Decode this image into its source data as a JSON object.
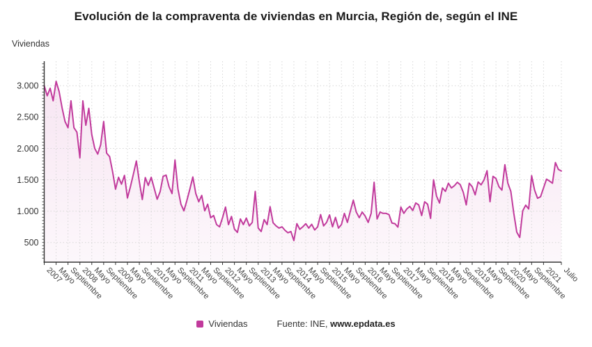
{
  "title": "Evolución de la compraventa de viviendas en Murcia, Región de, según el INE",
  "y_axis_title": "Viviendas",
  "legend": {
    "label": "Viviendas",
    "color": "#c13a9c"
  },
  "source": {
    "prefix": "Fuente: INE, ",
    "site": "www.epdata.es"
  },
  "chart_data": {
    "type": "area",
    "title": "Evolución de la compraventa de viviendas en Murcia, Región de, según el INE",
    "xlabel": "",
    "ylabel": "Viviendas",
    "frequency": "monthly",
    "x_start": "Enero 2007",
    "x_end": "Julio 2021",
    "grid": true,
    "legend_position": "bottom",
    "line_color": "#c13a9c",
    "fill_color_top": "rgba(193,58,156,0.13)",
    "fill_color_bottom": "rgba(193,58,156,0.04)",
    "y_ticks": [
      500,
      1000,
      1500,
      2000,
      2500,
      3000
    ],
    "y_tick_labels": [
      "500",
      "1.000",
      "1.500",
      "2.000",
      "2.500",
      "3.000"
    ],
    "ylim": [
      186,
      3392
    ],
    "x_tick_labels": [
      "2007",
      "Mayo",
      "Septiembre",
      "2008",
      "Mayo",
      "Septiembre",
      "2009",
      "Mayo",
      "Septiembre",
      "2010",
      "Mayo",
      "Septiembre",
      "2011",
      "Mayo",
      "Septiembre",
      "2012",
      "Mayo",
      "Septiembre",
      "2013",
      "Mayo",
      "Septiembre",
      "2014",
      "Mayo",
      "Septiembre",
      "2015",
      "Mayo",
      "Septiembre",
      "2016",
      "Mayo",
      "Septiembre",
      "2017",
      "Mayo",
      "Septiembre",
      "2018",
      "Mayo",
      "Septiembre",
      "2019",
      "Mayo",
      "Septiembre",
      "2020",
      "Mayo",
      "Septiembre",
      "2021",
      "Julio"
    ],
    "x_tick_month_index": [
      0,
      4,
      8,
      12,
      16,
      20,
      24,
      28,
      32,
      36,
      40,
      44,
      48,
      52,
      56,
      60,
      64,
      68,
      72,
      76,
      80,
      84,
      88,
      92,
      96,
      100,
      104,
      108,
      112,
      116,
      120,
      124,
      128,
      132,
      136,
      140,
      144,
      148,
      152,
      156,
      160,
      164,
      168,
      174
    ],
    "series": [
      {
        "name": "Viviendas",
        "values": [
          3000,
          2840,
          2960,
          2760,
          3070,
          2910,
          2650,
          2430,
          2330,
          2760,
          2330,
          2260,
          1850,
          2760,
          2370,
          2640,
          2220,
          2000,
          1910,
          2060,
          2430,
          1925,
          1870,
          1630,
          1350,
          1540,
          1430,
          1570,
          1210,
          1390,
          1590,
          1800,
          1470,
          1185,
          1535,
          1410,
          1540,
          1365,
          1190,
          1310,
          1555,
          1575,
          1390,
          1280,
          1815,
          1350,
          1110,
          1005,
          1170,
          1350,
          1545,
          1280,
          1150,
          1250,
          1005,
          1110,
          895,
          930,
          785,
          750,
          895,
          1065,
          785,
          915,
          715,
          660,
          875,
          785,
          890,
          765,
          820,
          1315,
          730,
          675,
          865,
          785,
          1070,
          815,
          765,
          730,
          750,
          695,
          655,
          675,
          530,
          800,
          710,
          750,
          800,
          730,
          790,
          700,
          750,
          945,
          765,
          820,
          940,
          750,
          900,
          730,
          785,
          965,
          820,
          1000,
          1175,
          985,
          895,
          985,
          920,
          820,
          965,
          1460,
          875,
          985,
          965,
          965,
          945,
          810,
          800,
          745,
          1065,
          965,
          1035,
          1075,
          1010,
          1130,
          1100,
          930,
          1150,
          1110,
          885,
          1500,
          1240,
          1130,
          1370,
          1315,
          1445,
          1370,
          1405,
          1460,
          1420,
          1300,
          1100,
          1445,
          1390,
          1260,
          1465,
          1420,
          1500,
          1645,
          1150,
          1555,
          1520,
          1390,
          1335,
          1740,
          1445,
          1315,
          965,
          665,
          580,
          1005,
          1095,
          1035,
          1565,
          1335,
          1205,
          1230,
          1370,
          1510,
          1480,
          1445,
          1775,
          1665,
          1640
        ]
      }
    ]
  }
}
